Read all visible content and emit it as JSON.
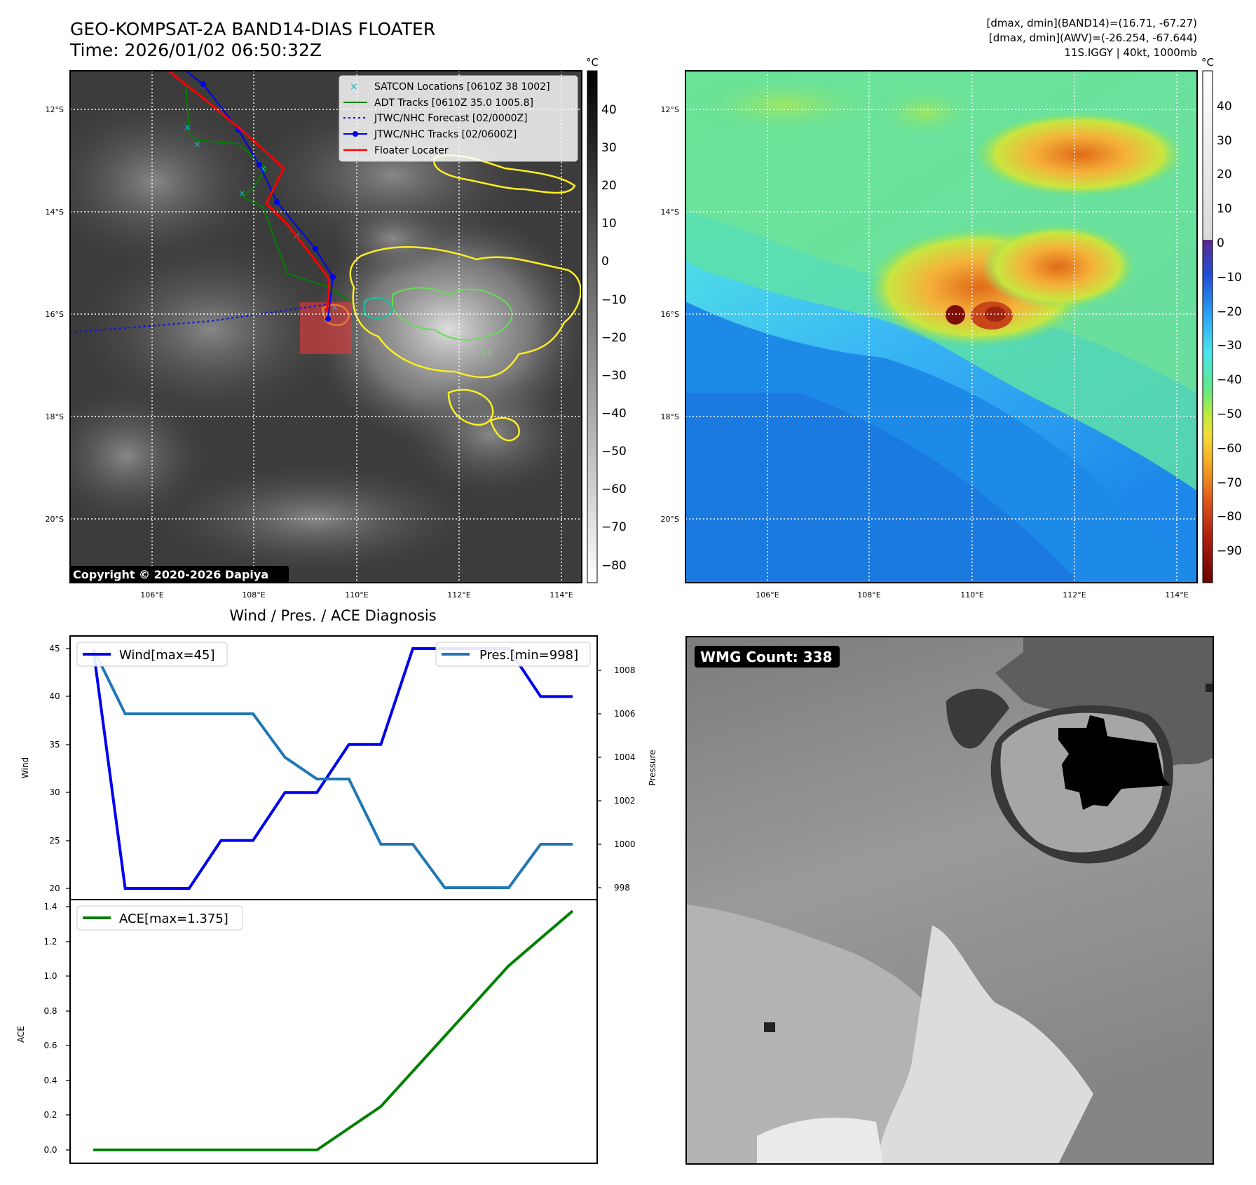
{
  "header": {
    "title": "GEO-KOMPSAT-2A BAND14-DIAS FLOATER",
    "time": "Time: 2026/01/02 06:50:32Z",
    "info1": "[dmax, dmin](BAND14)=(16.71, -67.27)",
    "info2": "[dmax, dmin](AWV)=(-26.254, -67.644)",
    "info3": "11S.IGGY | 40kt, 1000mb"
  },
  "map_axes": {
    "lat_labels": [
      "12°S",
      "14°S",
      "16°S",
      "18°S",
      "20°S"
    ],
    "lon_labels": [
      "106°E",
      "108°E",
      "110°E",
      "112°E",
      "114°E"
    ]
  },
  "colorbar_left": {
    "unit": "°C",
    "ticks": [
      "40",
      "30",
      "20",
      "10",
      "0",
      "−10",
      "−20",
      "−30",
      "−40",
      "−50",
      "−60",
      "−70",
      "−80"
    ]
  },
  "colorbar_right": {
    "unit": "°C",
    "ticks": [
      "40",
      "30",
      "20",
      "10",
      "0",
      "−10",
      "−20",
      "−30",
      "−40",
      "−50",
      "−60",
      "−70",
      "−80",
      "−90"
    ]
  },
  "legend": {
    "satcon": "SATCON Locations [0610Z 38 1002]",
    "adt": "ADT Tracks [0610Z 35.0 1005.8]",
    "forecast": "JTWC/NHC Forecast [02/0000Z]",
    "tracks": "JTWC/NHC Tracks [02/0600Z]",
    "floater": "Floater Locater"
  },
  "copyright": "Copyright © 2020-2026 Dapiya",
  "contour_label": "-31",
  "diagnosis": {
    "title": "Wind / Pres. / ACE Diagnosis",
    "wind_legend": "Wind[max=45]",
    "pres_legend": "Pres.[min=998]",
    "ace_legend": "ACE[max=1.375]",
    "wind_axis": "Wind",
    "pres_axis": "Pressure",
    "ace_axis": "ACE",
    "wind_ticks": [
      "45",
      "40",
      "35",
      "30",
      "25",
      "20"
    ],
    "pres_ticks": [
      "1008",
      "1006",
      "1004",
      "1002",
      "1000",
      "998"
    ],
    "ace_ticks": [
      "1.4",
      "1.2",
      "1.0",
      "0.8",
      "0.6",
      "0.4",
      "0.2",
      "0.0"
    ]
  },
  "wmg": {
    "label": "WMG Count: 338"
  },
  "colors": {
    "wind": "#0000ee",
    "pressure": "#1f77b4",
    "ace": "#008000",
    "floater": "#ff0000",
    "contour_yellow": "#ffee22",
    "contour_green": "#66dd55"
  },
  "chart_data": [
    {
      "type": "line",
      "title": "Wind / Pres. / ACE Diagnosis",
      "series": [
        {
          "name": "Wind[max=45]",
          "values": [
            45,
            20,
            20,
            20,
            25,
            25,
            30,
            30,
            35,
            35,
            45,
            45,
            45,
            45,
            40,
            40
          ],
          "x": [
            0,
            1,
            2,
            3,
            4,
            5,
            6,
            7,
            8,
            9,
            10,
            11,
            12,
            13,
            14,
            15
          ]
        },
        {
          "name": "Pres.[min=998]",
          "values": [
            1009,
            1006,
            1006,
            1006,
            1006,
            1006,
            1004,
            1003,
            1003,
            1000,
            1000,
            998,
            998,
            998,
            1000,
            1000
          ],
          "x": [
            0,
            1,
            2,
            3,
            4,
            5,
            6,
            7,
            8,
            9,
            10,
            11,
            12,
            13,
            14,
            15
          ]
        }
      ],
      "ylabel": "Wind",
      "ylim": [
        19,
        46
      ],
      "y2label": "Pressure",
      "y2lim": [
        997.4,
        1009.5
      ]
    },
    {
      "type": "line",
      "series": [
        {
          "name": "ACE[max=1.375]",
          "x": [
            0,
            7,
            9,
            13,
            15
          ],
          "values": [
            0.0,
            0.0,
            0.25,
            1.06,
            1.375
          ]
        }
      ],
      "ylabel": "ACE",
      "ylim": [
        -0.07,
        1.42
      ]
    }
  ]
}
